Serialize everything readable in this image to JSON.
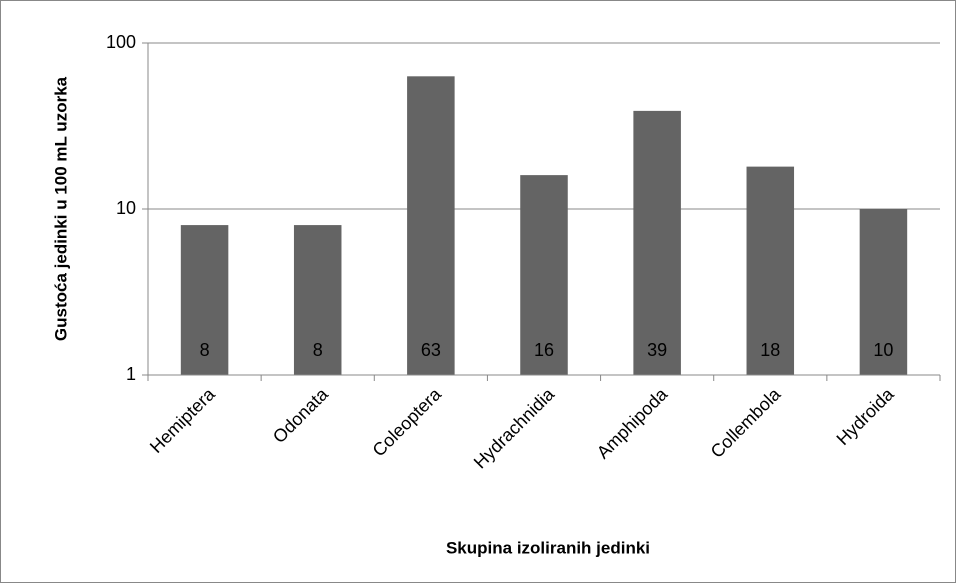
{
  "chart_data": {
    "type": "bar",
    "x_label": "Skupina izoliranih jedinki",
    "y_label": "Gustoća jedinki u 100 mL uzorka",
    "categories": [
      "Hemiptera",
      "Odonata",
      "Coleoptera",
      "Hydrachnidia",
      "Amphipoda",
      "Collembola",
      "Hydroida"
    ],
    "values": [
      8,
      8,
      63,
      16,
      39,
      18,
      10
    ],
    "color": "#646464",
    "ylim": [
      1,
      100
    ],
    "yticks": [
      1,
      10,
      100
    ],
    "log_scale": true,
    "grid": true,
    "show_value_labels": true
  }
}
